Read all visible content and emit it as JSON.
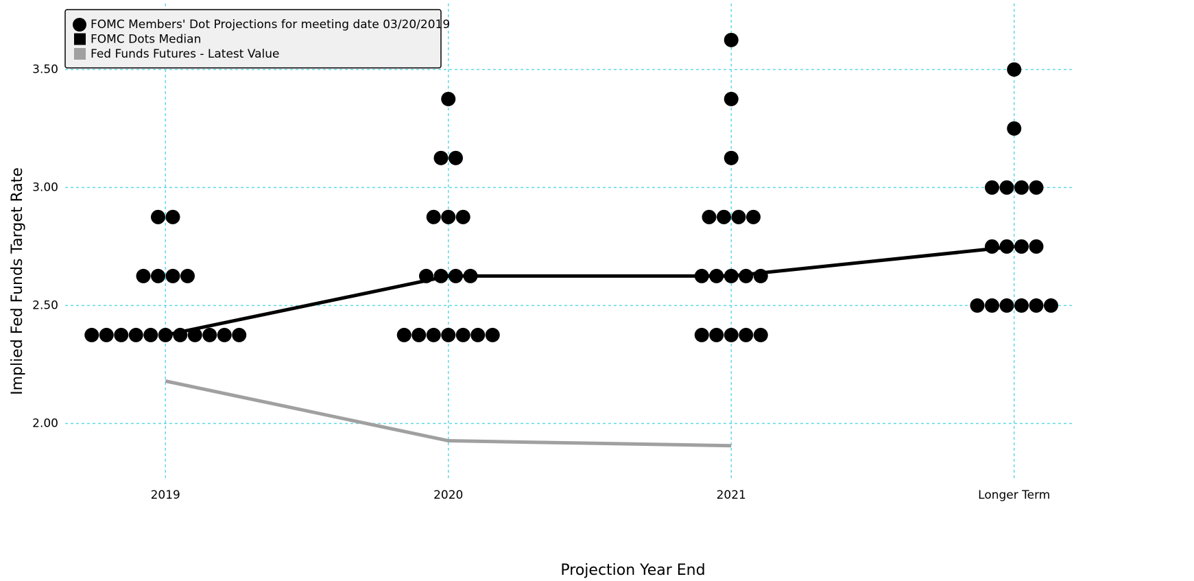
{
  "chart_data": {
    "type": "dot_plot",
    "xlabel": "Projection Year End",
    "ylabel": "Implied Fed Funds Target Rate",
    "categories": [
      "2019",
      "2020",
      "2021",
      "Longer Term"
    ],
    "series": [
      {
        "name": "FOMC Members' Dot Projections for meeting date 03/20/2019",
        "color": "#000000",
        "kind": "dots",
        "values": [
          [
            2.875,
            2.875,
            2.625,
            2.625,
            2.625,
            2.625,
            2.375,
            2.375,
            2.375,
            2.375,
            2.375,
            2.375,
            2.375,
            2.375,
            2.375,
            2.375,
            2.375
          ],
          [
            3.375,
            3.125,
            3.125,
            2.875,
            2.875,
            2.875,
            2.625,
            2.625,
            2.625,
            2.625,
            2.375,
            2.375,
            2.375,
            2.375,
            2.375,
            2.375,
            2.375
          ],
          [
            3.625,
            3.375,
            3.125,
            2.875,
            2.875,
            2.875,
            2.875,
            2.625,
            2.625,
            2.625,
            2.625,
            2.625,
            2.375,
            2.375,
            2.375,
            2.375,
            2.375
          ],
          [
            3.5,
            3.25,
            3.0,
            3.0,
            3.0,
            3.0,
            2.75,
            2.75,
            2.75,
            2.75,
            2.5,
            2.5,
            2.5,
            2.5,
            2.5,
            2.5
          ]
        ]
      },
      {
        "name": "FOMC Dots Median",
        "color": "#000000",
        "kind": "median",
        "values": [
          2.375,
          2.625,
          2.625,
          2.75
        ]
      },
      {
        "name": "Fed Funds Futures - Latest Value",
        "color": "#a0a0a0",
        "kind": "futures",
        "values": [
          2.18,
          1.927,
          1.906,
          null
        ]
      }
    ],
    "ylim": [
      1.76,
      3.78
    ],
    "yticks": [
      {
        "value": 2.0,
        "label": "2.00"
      },
      {
        "value": 2.5,
        "label": "2.50"
      },
      {
        "value": 3.0,
        "label": "3.00"
      },
      {
        "value": 3.5,
        "label": "3.50"
      }
    ],
    "grid": true,
    "grid_color": "#5fd8e6"
  }
}
